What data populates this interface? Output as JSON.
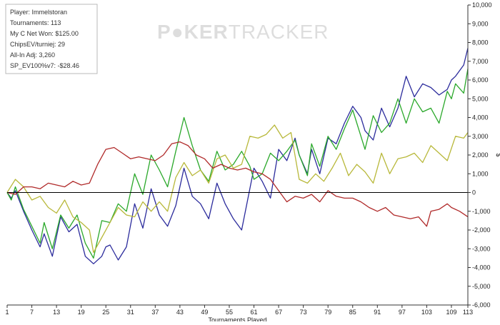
{
  "watermark": {
    "brand_left": "P",
    "brand_mid": "KER",
    "brand_right": "TRACKER"
  },
  "stats": {
    "player": "Player: Immelstoran",
    "tournaments": "Tournaments: 113",
    "net_won": "My C Net Won: $125.00",
    "chips_ev": "ChipsEV/turniej: 29",
    "allin_adj": "All-In Adj: 3,260",
    "sp_ev": "SP_EV100%v7: -$28.46"
  },
  "colors": {
    "blue": "#2b2b9c",
    "green": "#2aa82a",
    "olive": "#b8b83a",
    "red": "#b02a2a",
    "zero_line": "#000000",
    "background": "#ffffff"
  },
  "chart_data": {
    "type": "line",
    "xlabel": "Tournaments Played",
    "ylabel": "$",
    "xlim": [
      1,
      113
    ],
    "ylim": [
      -6000,
      10000
    ],
    "x_ticks": [
      1,
      7,
      13,
      19,
      25,
      31,
      37,
      43,
      49,
      55,
      61,
      67,
      73,
      79,
      85,
      91,
      97,
      103,
      109,
      113
    ],
    "y_ticks": [
      -6000,
      -5000,
      -4000,
      -3000,
      -2000,
      -1000,
      0,
      1000,
      2000,
      3000,
      4000,
      5000,
      6000,
      7000,
      8000,
      9000,
      10000
    ],
    "y_tick_labels": [
      "-6,000",
      "-5,000",
      "-4,000",
      "-3,000",
      "-2,000",
      "-1,000",
      "0",
      "1,000",
      "2,000",
      "3,000",
      "4,000",
      "5,000",
      "6,000",
      "7,000",
      "8,000",
      "9,000",
      "10,000"
    ],
    "grid": false,
    "series": [
      {
        "color_key": "blue",
        "points": [
          [
            1,
            0
          ],
          [
            2,
            -300
          ],
          [
            3,
            100
          ],
          [
            5,
            -1000
          ],
          [
            7,
            -2000
          ],
          [
            9,
            -2900
          ],
          [
            10,
            -2200
          ],
          [
            12,
            -3400
          ],
          [
            14,
            -1300
          ],
          [
            16,
            -2100
          ],
          [
            18,
            -1700
          ],
          [
            20,
            -3400
          ],
          [
            22,
            -3800
          ],
          [
            24,
            -3400
          ],
          [
            25,
            -2900
          ],
          [
            26,
            -2800
          ],
          [
            28,
            -3600
          ],
          [
            30,
            -2900
          ],
          [
            32,
            -600
          ],
          [
            34,
            -1900
          ],
          [
            36,
            200
          ],
          [
            38,
            -1200
          ],
          [
            40,
            -1800
          ],
          [
            42,
            -700
          ],
          [
            44,
            1300
          ],
          [
            46,
            -200
          ],
          [
            48,
            -600
          ],
          [
            50,
            -1400
          ],
          [
            52,
            500
          ],
          [
            54,
            -600
          ],
          [
            56,
            -1400
          ],
          [
            58,
            -2000
          ],
          [
            60,
            200
          ],
          [
            61,
            1300
          ],
          [
            63,
            600
          ],
          [
            65,
            -300
          ],
          [
            67,
            2300
          ],
          [
            69,
            1700
          ],
          [
            71,
            2900
          ],
          [
            72,
            2000
          ],
          [
            74,
            1000
          ],
          [
            75,
            2300
          ],
          [
            77,
            1000
          ],
          [
            79,
            2900
          ],
          [
            81,
            2600
          ],
          [
            83,
            3700
          ],
          [
            85,
            4600
          ],
          [
            87,
            4000
          ],
          [
            88,
            3300
          ],
          [
            90,
            2800
          ],
          [
            92,
            4500
          ],
          [
            94,
            3500
          ],
          [
            96,
            4500
          ],
          [
            98,
            6200
          ],
          [
            100,
            5100
          ],
          [
            102,
            5800
          ],
          [
            104,
            5600
          ],
          [
            106,
            5200
          ],
          [
            108,
            5500
          ],
          [
            109,
            6000
          ],
          [
            110,
            6200
          ],
          [
            112,
            6800
          ],
          [
            113,
            7700
          ]
        ]
      },
      {
        "color_key": "green",
        "points": [
          [
            1,
            0
          ],
          [
            2,
            -400
          ],
          [
            3,
            300
          ],
          [
            5,
            -900
          ],
          [
            7,
            -1800
          ],
          [
            9,
            -2700
          ],
          [
            10,
            -1600
          ],
          [
            12,
            -3000
          ],
          [
            14,
            -1200
          ],
          [
            16,
            -1900
          ],
          [
            18,
            -1200
          ],
          [
            20,
            -2700
          ],
          [
            22,
            -3500
          ],
          [
            24,
            -1500
          ],
          [
            26,
            -1600
          ],
          [
            28,
            -600
          ],
          [
            30,
            -1000
          ],
          [
            32,
            1000
          ],
          [
            34,
            -100
          ],
          [
            36,
            2000
          ],
          [
            38,
            1200
          ],
          [
            40,
            300
          ],
          [
            42,
            2200
          ],
          [
            44,
            4000
          ],
          [
            46,
            2500
          ],
          [
            48,
            1200
          ],
          [
            50,
            600
          ],
          [
            52,
            2200
          ],
          [
            54,
            1200
          ],
          [
            56,
            1500
          ],
          [
            58,
            2200
          ],
          [
            60,
            1400
          ],
          [
            61,
            700
          ],
          [
            63,
            1000
          ],
          [
            65,
            2100
          ],
          [
            67,
            1700
          ],
          [
            69,
            2200
          ],
          [
            71,
            2800
          ],
          [
            72,
            2000
          ],
          [
            74,
            900
          ],
          [
            75,
            2600
          ],
          [
            77,
            1400
          ],
          [
            79,
            3000
          ],
          [
            81,
            2300
          ],
          [
            83,
            3400
          ],
          [
            85,
            4400
          ],
          [
            87,
            3000
          ],
          [
            88,
            2300
          ],
          [
            90,
            4100
          ],
          [
            92,
            3200
          ],
          [
            94,
            3700
          ],
          [
            96,
            5000
          ],
          [
            98,
            3700
          ],
          [
            100,
            5000
          ],
          [
            102,
            4300
          ],
          [
            104,
            4500
          ],
          [
            106,
            3700
          ],
          [
            108,
            5400
          ],
          [
            109,
            5000
          ],
          [
            110,
            5800
          ],
          [
            112,
            5300
          ],
          [
            113,
            6600
          ]
        ]
      },
      {
        "color_key": "olive",
        "points": [
          [
            1,
            0
          ],
          [
            3,
            700
          ],
          [
            5,
            300
          ],
          [
            7,
            -400
          ],
          [
            9,
            -200
          ],
          [
            11,
            -800
          ],
          [
            13,
            -1100
          ],
          [
            15,
            -400
          ],
          [
            17,
            -1300
          ],
          [
            19,
            -1600
          ],
          [
            21,
            -2000
          ],
          [
            22,
            -3200
          ],
          [
            24,
            -2400
          ],
          [
            26,
            -1600
          ],
          [
            28,
            -800
          ],
          [
            30,
            -1200
          ],
          [
            32,
            -1300
          ],
          [
            34,
            -500
          ],
          [
            36,
            -1000
          ],
          [
            38,
            -500
          ],
          [
            40,
            -1000
          ],
          [
            42,
            800
          ],
          [
            44,
            1600
          ],
          [
            46,
            900
          ],
          [
            48,
            1200
          ],
          [
            50,
            500
          ],
          [
            52,
            1800
          ],
          [
            54,
            2000
          ],
          [
            56,
            1300
          ],
          [
            58,
            1500
          ],
          [
            60,
            3000
          ],
          [
            62,
            2900
          ],
          [
            64,
            3100
          ],
          [
            66,
            3600
          ],
          [
            68,
            2900
          ],
          [
            70,
            3200
          ],
          [
            72,
            700
          ],
          [
            74,
            500
          ],
          [
            76,
            1000
          ],
          [
            78,
            600
          ],
          [
            80,
            1300
          ],
          [
            82,
            2100
          ],
          [
            84,
            900
          ],
          [
            86,
            1500
          ],
          [
            88,
            1100
          ],
          [
            90,
            500
          ],
          [
            92,
            2100
          ],
          [
            94,
            1000
          ],
          [
            96,
            1800
          ],
          [
            98,
            1900
          ],
          [
            100,
            2100
          ],
          [
            102,
            1600
          ],
          [
            104,
            2500
          ],
          [
            106,
            2100
          ],
          [
            108,
            1700
          ],
          [
            110,
            3000
          ],
          [
            112,
            2900
          ],
          [
            113,
            3200
          ]
        ]
      },
      {
        "color_key": "red",
        "points": [
          [
            1,
            0
          ],
          [
            3,
            -100
          ],
          [
            5,
            300
          ],
          [
            7,
            300
          ],
          [
            9,
            200
          ],
          [
            11,
            500
          ],
          [
            13,
            400
          ],
          [
            15,
            300
          ],
          [
            17,
            600
          ],
          [
            19,
            400
          ],
          [
            21,
            500
          ],
          [
            23,
            1500
          ],
          [
            25,
            2300
          ],
          [
            27,
            2400
          ],
          [
            29,
            2100
          ],
          [
            31,
            1800
          ],
          [
            33,
            1900
          ],
          [
            35,
            1800
          ],
          [
            37,
            1700
          ],
          [
            39,
            2000
          ],
          [
            41,
            2600
          ],
          [
            43,
            2700
          ],
          [
            45,
            2500
          ],
          [
            47,
            2000
          ],
          [
            49,
            1800
          ],
          [
            51,
            1300
          ],
          [
            53,
            1500
          ],
          [
            55,
            1300
          ],
          [
            57,
            1200
          ],
          [
            59,
            1300
          ],
          [
            61,
            1100
          ],
          [
            63,
            1000
          ],
          [
            65,
            700
          ],
          [
            67,
            100
          ],
          [
            69,
            -500
          ],
          [
            71,
            -200
          ],
          [
            73,
            -300
          ],
          [
            75,
            -100
          ],
          [
            77,
            -500
          ],
          [
            79,
            100
          ],
          [
            81,
            -200
          ],
          [
            83,
            -300
          ],
          [
            85,
            -300
          ],
          [
            87,
            -500
          ],
          [
            89,
            -800
          ],
          [
            91,
            -1000
          ],
          [
            93,
            -800
          ],
          [
            95,
            -1200
          ],
          [
            97,
            -1300
          ],
          [
            99,
            -1400
          ],
          [
            101,
            -1300
          ],
          [
            103,
            -1800
          ],
          [
            104,
            -1000
          ],
          [
            106,
            -900
          ],
          [
            108,
            -600
          ],
          [
            109,
            -800
          ],
          [
            111,
            -1000
          ],
          [
            113,
            -1300
          ]
        ]
      }
    ]
  }
}
